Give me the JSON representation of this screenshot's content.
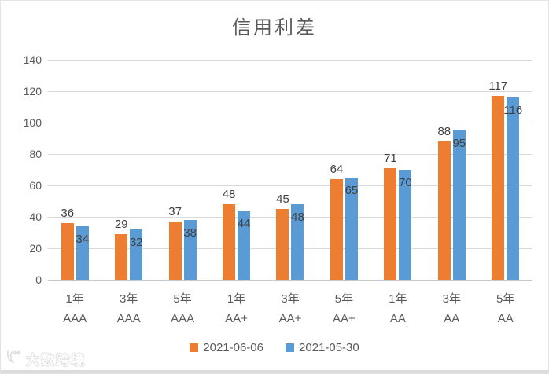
{
  "chart_data": {
    "type": "bar",
    "title": "信用利差",
    "categories": [
      {
        "term": "1年",
        "rating": "AAA"
      },
      {
        "term": "3年",
        "rating": "AAA"
      },
      {
        "term": "5年",
        "rating": "AAA"
      },
      {
        "term": "1年",
        "rating": "AA+"
      },
      {
        "term": "3年",
        "rating": "AA+"
      },
      {
        "term": "5年",
        "rating": "AA+"
      },
      {
        "term": "1年",
        "rating": "AA"
      },
      {
        "term": "3年",
        "rating": "AA"
      },
      {
        "term": "5年",
        "rating": "AA"
      }
    ],
    "series": [
      {
        "name": "2021-06-06",
        "color": "#ED7D31",
        "values": [
          36,
          29,
          37,
          48,
          45,
          64,
          71,
          88,
          117
        ],
        "label_position": "outside"
      },
      {
        "name": "2021-05-30",
        "color": "#5B9BD5",
        "values": [
          34,
          32,
          38,
          44,
          48,
          65,
          70,
          95,
          116
        ],
        "label_position": "inside"
      }
    ],
    "ylim": [
      0,
      140
    ],
    "ytick_step": 20,
    "yticks": [
      0,
      20,
      40,
      60,
      80,
      100,
      120,
      140
    ],
    "grid": true,
    "legend_position": "bottom",
    "colors": {
      "gridline": "#d9d9d9",
      "axis_text": "#595959",
      "data_label": "#404040",
      "title_text": "#595959"
    }
  },
  "watermark": {
    "text": "大数跨境"
  }
}
